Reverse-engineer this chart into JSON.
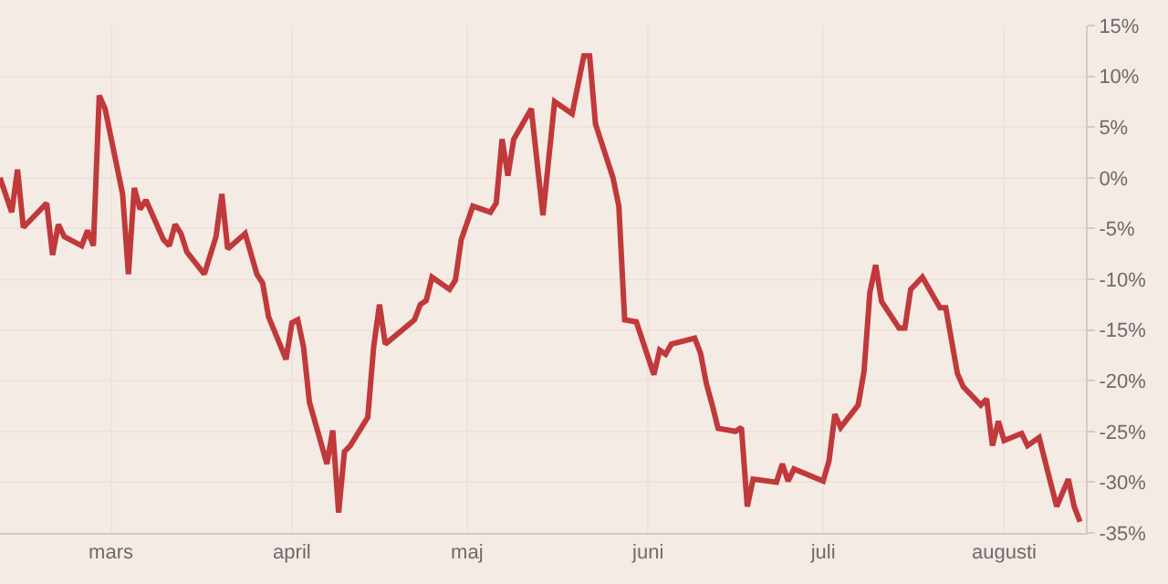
{
  "chart_data": {
    "type": "line",
    "grid": true,
    "marker": "none",
    "line_style": "solid",
    "xlim": [
      "--02-10",
      "--08-15"
    ],
    "xticks": [
      {
        "value": "--03-01",
        "label": "mars"
      },
      {
        "value": "--04-01",
        "label": "april"
      },
      {
        "value": "--05-01",
        "label": "maj"
      },
      {
        "value": "--06-01",
        "label": "juni"
      },
      {
        "value": "--07-01",
        "label": "juli"
      },
      {
        "value": "--08-01",
        "label": "augusti"
      }
    ],
    "ylim": [
      -35,
      15
    ],
    "yticks": [
      {
        "value": 15,
        "label": "15%"
      },
      {
        "value": 10,
        "label": "10%"
      },
      {
        "value": 5,
        "label": "5%"
      },
      {
        "value": 0,
        "label": "0%"
      },
      {
        "value": -5,
        "label": "-5%"
      },
      {
        "value": -10,
        "label": "-10%"
      },
      {
        "value": -15,
        "label": "-15%"
      },
      {
        "value": -20,
        "label": "-20%"
      },
      {
        "value": -25,
        "label": "-25%"
      },
      {
        "value": -30,
        "label": "-30%"
      },
      {
        "value": -35,
        "label": "-35%"
      }
    ],
    "series": [
      {
        "color": "#c0393b",
        "x": [
          "--02-10",
          "--02-12",
          "--02-13",
          "--02-14",
          "--02-18",
          "--02-19",
          "--02-20",
          "--02-21",
          "--02-24",
          "--02-25",
          "--02-26",
          "--02-27",
          "--02-28",
          "--03-03",
          "--03-04",
          "--03-05",
          "--03-06",
          "--03-07",
          "--03-10",
          "--03-11",
          "--03-12",
          "--03-13",
          "--03-14",
          "--03-17",
          "--03-19",
          "--03-20",
          "--03-21",
          "--03-24",
          "--03-26",
          "--03-27",
          "--03-28",
          "--03-31",
          "--04-01",
          "--04-02",
          "--04-03",
          "--04-04",
          "--04-07",
          "--04-08",
          "--04-09",
          "--04-10",
          "--04-11",
          "--04-14",
          "--04-15",
          "--04-16",
          "--04-17",
          "--04-22",
          "--04-23",
          "--04-24",
          "--04-25",
          "--04-28",
          "--04-29",
          "--04-30",
          "--05-02",
          "--05-05",
          "--05-06",
          "--05-07",
          "--05-08",
          "--05-09",
          "--05-12",
          "--05-14",
          "--05-16",
          "--05-19",
          "--05-21",
          "--05-22",
          "--05-23",
          "--05-26",
          "--05-27",
          "--05-28",
          "--05-30",
          "--06-02",
          "--06-03",
          "--06-04",
          "--06-05",
          "--06-09",
          "--06-10",
          "--06-11",
          "--06-12",
          "--06-13",
          "--06-16",
          "--06-17",
          "--06-18",
          "--06-19",
          "--06-23",
          "--06-24",
          "--06-25",
          "--06-26",
          "--07-01",
          "--07-02",
          "--07-03",
          "--07-04",
          "--07-07",
          "--07-08",
          "--07-09",
          "--07-10",
          "--07-11",
          "--07-14",
          "--07-15",
          "--07-16",
          "--07-18",
          "--07-21",
          "--07-22",
          "--07-24",
          "--07-25",
          "--07-28",
          "--07-29",
          "--07-30",
          "--07-31",
          "--08-01",
          "--08-04",
          "--08-05",
          "--08-07",
          "--08-08",
          "--08-10",
          "--08-12",
          "--08-13",
          "--08-14"
        ],
        "values": [
          0.0,
          -3.4,
          0.8,
          -4.9,
          -2.5,
          -7.6,
          -4.6,
          -5.8,
          -6.7,
          -5.2,
          -6.7,
          8.1,
          6.8,
          -1.6,
          -9.5,
          -1.0,
          -3.1,
          -2.2,
          -6.1,
          -6.7,
          -4.6,
          -5.5,
          -7.3,
          -9.5,
          -5.8,
          -1.6,
          -7.0,
          -5.5,
          -9.5,
          -10.4,
          -13.7,
          -17.9,
          -14.3,
          -14.0,
          -16.7,
          -22.1,
          -28.2,
          -24.9,
          -33.0,
          -27.0,
          -26.4,
          -23.6,
          -16.7,
          -12.5,
          -16.4,
          -14.0,
          -12.5,
          -12.1,
          -9.8,
          -11.0,
          -10.1,
          -6.1,
          -2.8,
          -3.4,
          -2.5,
          3.8,
          0.2,
          3.8,
          6.8,
          -3.7,
          7.5,
          6.3,
          12.0,
          12.0,
          5.3,
          0.0,
          -2.8,
          -14.0,
          -14.2,
          -19.4,
          -17.0,
          -17.4,
          -16.4,
          -15.8,
          -17.3,
          -20.3,
          -22.4,
          -24.7,
          -25.0,
          -24.6,
          -32.4,
          -29.7,
          -30.0,
          -28.2,
          -29.9,
          -28.7,
          -29.9,
          -27.9,
          -23.3,
          -24.6,
          -22.4,
          -19.1,
          -11.3,
          -8.6,
          -12.2,
          -14.8,
          -14.8,
          -11.0,
          -9.8,
          -12.8,
          -12.8,
          -19.3,
          -20.6,
          -22.4,
          -21.8,
          -26.4,
          -24.0,
          -25.9,
          -25.2,
          -26.4,
          -25.6,
          -27.9,
          -32.4,
          -29.7,
          -32.4,
          -33.9
        ]
      }
    ]
  }
}
